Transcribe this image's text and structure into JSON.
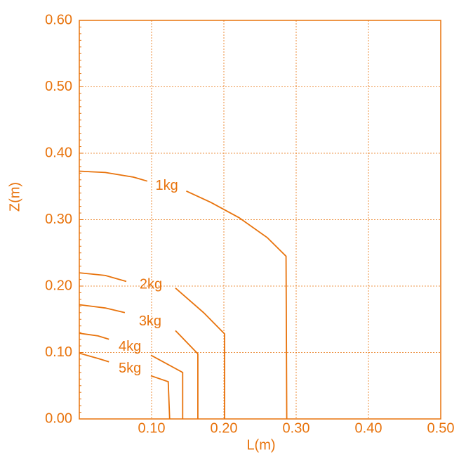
{
  "chart_data": {
    "type": "line",
    "x_label": "L(m)",
    "y_label": "Z(m)",
    "color": "#e8730c",
    "grid": true,
    "xlim": [
      0,
      0.5
    ],
    "ylim": [
      0,
      0.6
    ],
    "xticks": [
      {
        "value": 0.1,
        "label": "0.10"
      },
      {
        "value": 0.2,
        "label": "0.20"
      },
      {
        "value": 0.3,
        "label": "0.30"
      },
      {
        "value": 0.4,
        "label": "0.40"
      },
      {
        "value": 0.5,
        "label": "0.50"
      }
    ],
    "yticks": [
      {
        "value": 0,
        "label": "0.00"
      },
      {
        "value": 0.1,
        "label": "0.10"
      },
      {
        "value": 0.2,
        "label": "0.20"
      },
      {
        "value": 0.3,
        "label": "0.30"
      },
      {
        "value": 0.4,
        "label": "0.40"
      },
      {
        "value": 0.5,
        "label": "0.50"
      },
      {
        "value": 0.6,
        "label": "0.60"
      }
    ],
    "series": [
      {
        "name": "1kg",
        "x": [
          0,
          0.036,
          0.075,
          0.094,
          0.12,
          0.148,
          0.182,
          0.221,
          0.26,
          0.286,
          0.287
        ],
        "values": [
          0.373,
          0.371,
          0.364,
          0.358,
          null,
          0.343,
          0.326,
          0.303,
          0.273,
          0.245,
          0
        ]
      },
      {
        "name": "2kg",
        "x": [
          0,
          0.036,
          0.065,
          0.1,
          0.133,
          0.172,
          0.201,
          0.201
        ],
        "values": [
          0.22,
          0.216,
          0.207,
          null,
          0.197,
          0.16,
          0.128,
          0
        ]
      },
      {
        "name": "3kg",
        "x": [
          0,
          0.036,
          0.063,
          0.1,
          0.133,
          0.164,
          0.164
        ],
        "values": [
          0.172,
          0.167,
          0.16,
          null,
          0.133,
          0.098,
          0
        ]
      },
      {
        "name": "4kg",
        "x": [
          0,
          0.026,
          0.041,
          0.07,
          0.099,
          0.143,
          0.143
        ],
        "values": [
          0.129,
          0.125,
          0.12,
          null,
          0.096,
          0.07,
          0
        ]
      },
      {
        "name": "5kg",
        "x": [
          0,
          0.026,
          0.041,
          0.07,
          0.099,
          0.123,
          0.125
        ],
        "values": [
          0.099,
          0.091,
          0.086,
          null,
          0.065,
          0.056,
          0
        ]
      }
    ]
  }
}
